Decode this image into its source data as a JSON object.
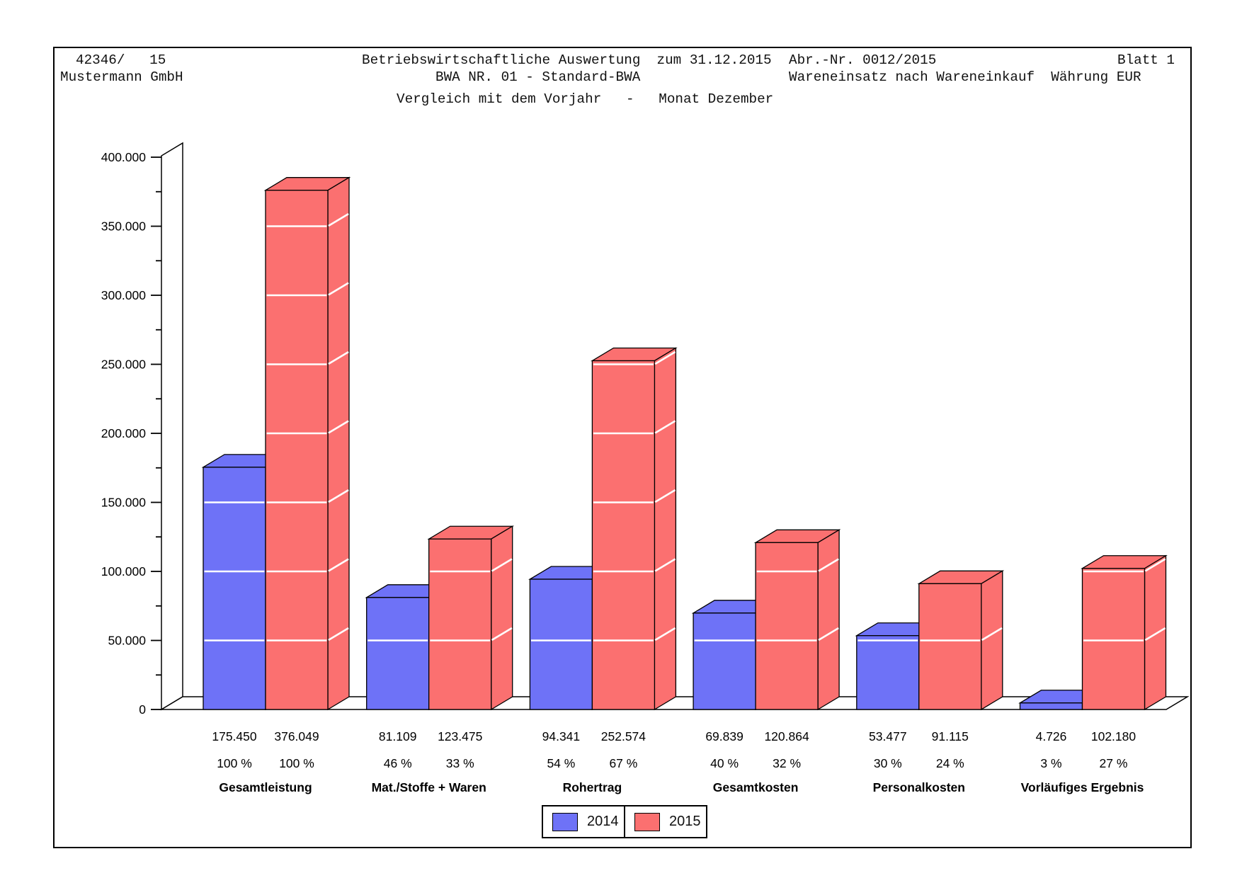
{
  "page": {
    "header": {
      "doc_number": "42346/   15",
      "company": "Mustermann GmbH",
      "title": "Betriebswirtschaftliche Auswertung  zum 31.12.2015",
      "bwa_type": "BWA NR. 01 - Standard-BWA",
      "abr_nr": "Abr.-Nr. 0012/2015",
      "blatt": "Blatt 1",
      "waren_currency_line": "Wareneinsatz nach Wareneinkauf  Währung EUR",
      "vergleich_line": "Vergleich mit dem Vorjahr   -   Monat Dezember"
    }
  },
  "chart_data": {
    "type": "bar",
    "style": "3d-column-pairs",
    "title": "Vergleich mit dem Vorjahr - Monat Dezember",
    "categories": [
      "Gesamtleistung",
      "Mat./Stoffe + Waren",
      "Rohertrag",
      "Gesamtkosten",
      "Personalkosten",
      "Vorläufiges Ergebnis"
    ],
    "series": [
      {
        "name": "2014",
        "color": "#6E72F7",
        "values": [
          175450,
          81109,
          94341,
          69839,
          53477,
          4726
        ],
        "value_labels": [
          "175.450",
          "81.109",
          "94.341",
          "69.839",
          "53.477",
          "4.726"
        ],
        "percent_labels": [
          "100 %",
          "46 %",
          "54 %",
          "40 %",
          "30 %",
          "3 %"
        ]
      },
      {
        "name": "2015",
        "color": "#FB7070",
        "values": [
          376049,
          123475,
          252574,
          120864,
          91115,
          102180
        ],
        "value_labels": [
          "376.049",
          "123.475",
          "252.574",
          "120.864",
          "91.115",
          "102.180"
        ],
        "percent_labels": [
          "100 %",
          "33 %",
          "67 %",
          "32 %",
          "24 %",
          "27 %"
        ]
      }
    ],
    "ylim": [
      0,
      400000
    ],
    "ytick_step": 50000,
    "ytick_minor_step": 25000,
    "ytick_labels": [
      "0",
      "50.000",
      "100.000",
      "150.000",
      "200.000",
      "250.000",
      "300.000",
      "350.000",
      "400.000"
    ],
    "legend_position": "bottom-center",
    "grid": "white gridlines drawn across bars every 50.000"
  }
}
